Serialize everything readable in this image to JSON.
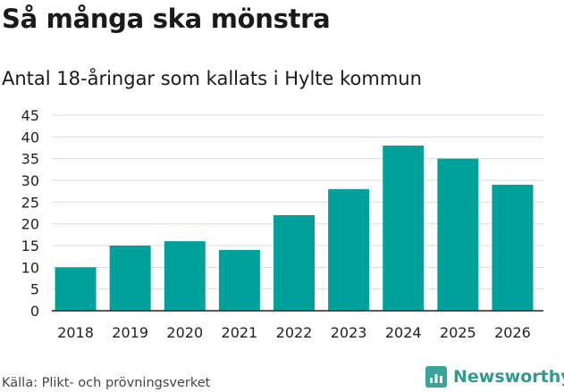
{
  "title": "Så många ska mönstra",
  "subtitle": "Antal 18-åringar som kallats i Hylte kommun",
  "source": "Källa: Plikt- och prövningsverket",
  "brand": {
    "name": "Newsworthy",
    "icon": "newsworthy-logo-icon"
  },
  "colors": {
    "bar": "#00a19a",
    "grid": "#dddddd",
    "axis": "#222222"
  },
  "chart_data": {
    "type": "bar",
    "categories": [
      "2018",
      "2019",
      "2020",
      "2021",
      "2022",
      "2023",
      "2024",
      "2025",
      "2026"
    ],
    "values": [
      10,
      15,
      16,
      14,
      22,
      28,
      38,
      35,
      29
    ],
    "ylim": [
      0,
      45
    ],
    "yticks": [
      "0",
      "5",
      "10",
      "15",
      "20",
      "25",
      "30",
      "35",
      "40",
      "45"
    ],
    "grid": true,
    "xlabel": "",
    "ylabel": ""
  }
}
